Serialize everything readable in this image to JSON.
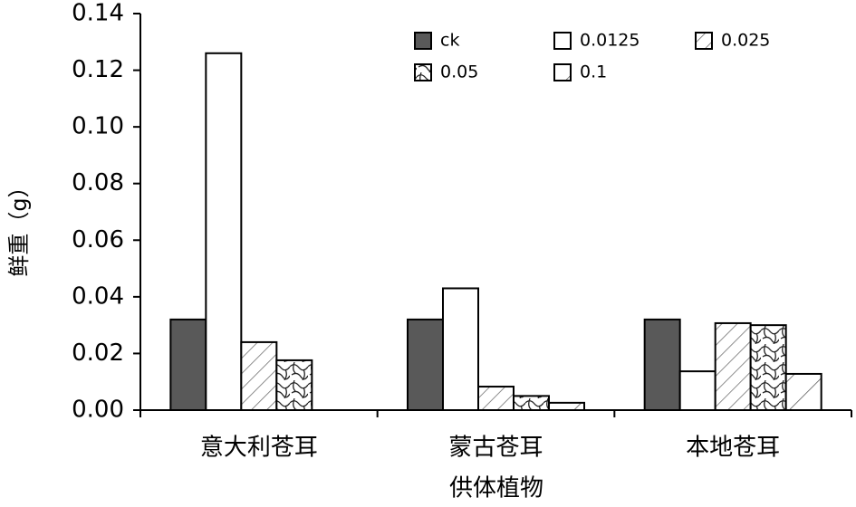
{
  "chart_data": {
    "type": "bar",
    "y_label": "鲜重（g）",
    "x_label": "供体植物",
    "categories": [
      "意大利苍耳",
      "蒙古苍耳",
      "本地苍耳"
    ],
    "series": [
      {
        "name": "ck",
        "color": "#595959",
        "pattern": "solid",
        "values": [
          0.032,
          0.032,
          0.032
        ]
      },
      {
        "name": "0.0125",
        "color": "#ffffff",
        "pattern": "solid",
        "values": [
          0.126,
          0.043,
          0.0137
        ]
      },
      {
        "name": "0.025",
        "color": "#ffffff",
        "pattern": "hatch",
        "values": [
          0.024,
          0.0083,
          0.0307
        ]
      },
      {
        "name": "0.05",
        "color": "#ffffff",
        "pattern": "marble",
        "values": [
          0.0176,
          0.005,
          0.03
        ]
      },
      {
        "name": "0.1",
        "color": "#ffffff",
        "pattern": "sparse-hatch",
        "values": [
          0,
          0.0026,
          0.0128
        ]
      }
    ],
    "ylim": [
      0,
      0.14
    ],
    "yticks": [
      {
        "value": 0,
        "label": "0.00"
      },
      0.02,
      0.04,
      0.06,
      0.08,
      {
        "value": 0.1,
        "label": "0.10"
      },
      0.12,
      0.14
    ],
    "legend": "top-right"
  }
}
